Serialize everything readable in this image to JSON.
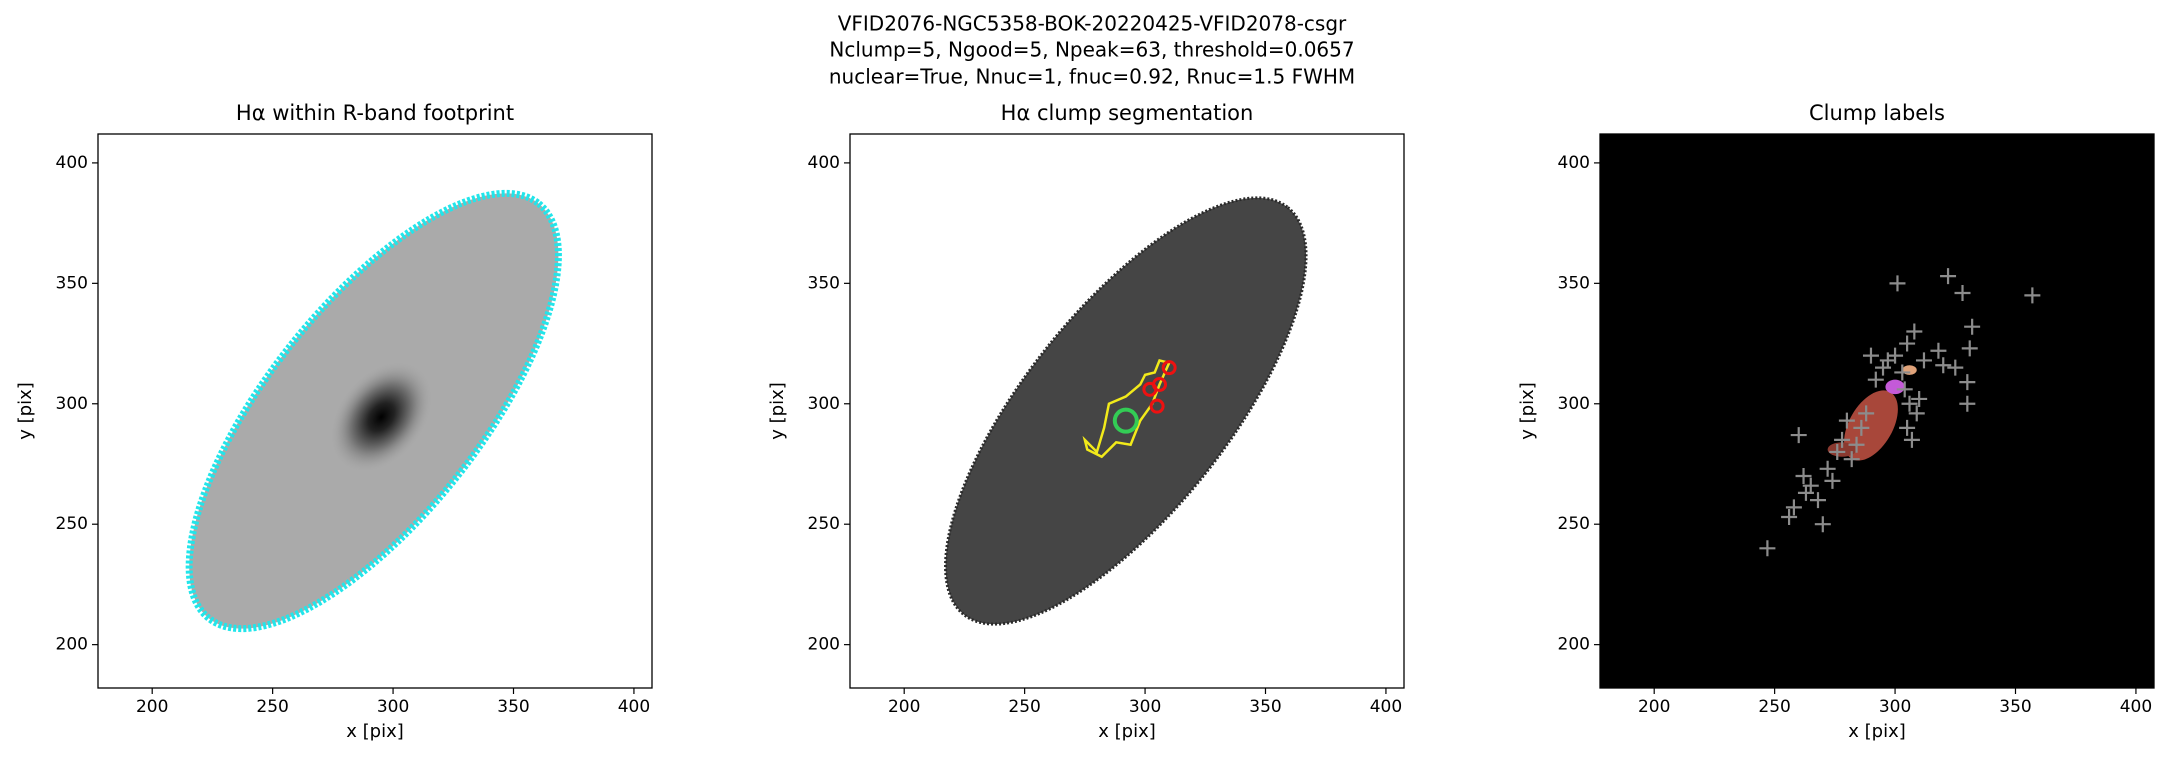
{
  "title_lines": [
    "VFID2076-NGC5358-BOK-20220425-VFID2078-csgr",
    "Nclump=5, Ngood=5, Npeak=63, threshold=0.0657",
    "nuclear=True, Nnuc=1, fnuc=0.92, Rnuc=1.5 FWHM"
  ],
  "chart_data": [
    {
      "type": "image",
      "style": "footprint",
      "title": "Hα within R-band footprint",
      "x_label": "x [pix]",
      "y_label": "y [pix]",
      "xlim": [
        177.5,
        407.5
      ],
      "ylim": [
        182,
        412
      ],
      "xticks": [
        200,
        250,
        300,
        350,
        400
      ],
      "yticks": [
        200,
        250,
        300,
        350,
        400
      ],
      "color": "#22e5ea"
    },
    {
      "type": "image",
      "style": "segmentation",
      "title": "Hα clump segmentation",
      "x_label": "x [pix]",
      "y_label": "y [pix]",
      "xlim": [
        177.5,
        407.5
      ],
      "ylim": [
        182,
        412
      ],
      "xticks": [
        200,
        250,
        300,
        350,
        400
      ],
      "yticks": [
        200,
        250,
        300,
        350,
        400
      ],
      "series": [
        {
          "color": "#ee1111",
          "x": [
            302,
            306,
            310,
            305
          ],
          "values": [
            306,
            308,
            315,
            299
          ]
        },
        {
          "color": "#33cc55",
          "x": [
            292
          ],
          "values": [
            293
          ]
        }
      ]
    },
    {
      "type": "scatter",
      "style": "labels",
      "title": "Clump labels",
      "x_label": "x [pix]",
      "y_label": "y [pix]",
      "xlim": [
        177.5,
        407.5
      ],
      "ylim": [
        182,
        412
      ],
      "xticks": [
        200,
        250,
        300,
        350,
        400
      ],
      "yticks": [
        200,
        250,
        300,
        350,
        400
      ],
      "color": "#8c8c8c",
      "x": [
        247,
        256,
        258,
        263,
        260,
        262,
        265,
        268,
        270,
        272,
        274,
        276,
        278,
        280,
        282,
        284,
        286,
        288,
        290,
        292,
        295,
        297,
        300,
        301,
        303,
        304,
        305,
        306,
        305,
        307,
        308,
        309,
        310,
        312,
        318,
        320,
        322,
        325,
        328,
        330,
        330,
        331,
        332,
        357
      ],
      "values": [
        240,
        253,
        257,
        263,
        287,
        270,
        266,
        260,
        250,
        273,
        268,
        280,
        285,
        293,
        277,
        283,
        290,
        296,
        320,
        310,
        315,
        318,
        320,
        350,
        313,
        306,
        325,
        300,
        290,
        285,
        330,
        296,
        302,
        318,
        322,
        316,
        353,
        315,
        346,
        300,
        309,
        323,
        332,
        345
      ]
    }
  ]
}
